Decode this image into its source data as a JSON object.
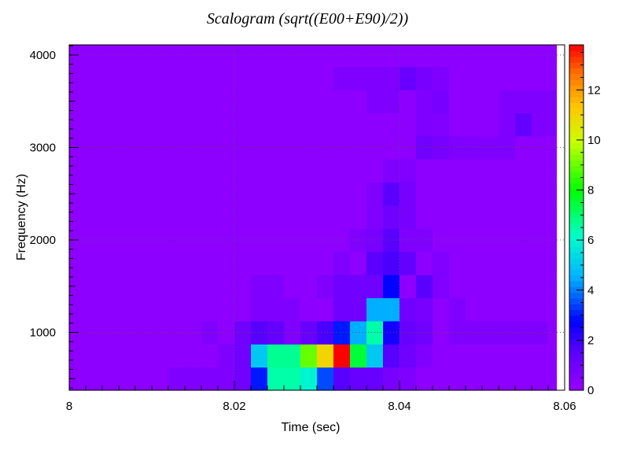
{
  "chart_data": {
    "type": "heatmap",
    "title": "Scalogram (sqrt((E00+E90)/2))",
    "xlabel": "Time (sec)",
    "ylabel": "Frequency (Hz)",
    "xlim": [
      8.0,
      8.06
    ],
    "ylim": [
      375,
      4110
    ],
    "x_ticks": [
      8,
      8.02,
      8.04,
      8.06
    ],
    "x_tick_labels": [
      "8",
      "8.02",
      "8.04",
      "8.06"
    ],
    "y_ticks": [
      1000,
      2000,
      3000,
      4000
    ],
    "y_tick_labels": [
      "1000",
      "2000",
      "3000",
      "4000"
    ],
    "colorbar": {
      "min": 0,
      "max": 13.8,
      "ticks": [
        0,
        2,
        4,
        6,
        8,
        10,
        12
      ],
      "tick_labels": [
        "0",
        "2",
        "4",
        "6",
        "8",
        "10",
        "12"
      ]
    },
    "grid": true,
    "x_bin_edges": [
      8.0,
      8.002,
      8.004,
      8.006,
      8.008,
      8.01,
      8.012,
      8.014,
      8.016,
      8.018,
      8.02,
      8.022,
      8.024,
      8.026,
      8.028,
      8.03,
      8.032,
      8.034,
      8.036,
      8.038,
      8.04,
      8.042,
      8.044,
      8.046,
      8.048,
      8.05,
      8.052,
      8.054,
      8.056,
      8.058,
      8.059
    ],
    "y_bin_edges": [
      375,
      625,
      875,
      1125,
      1375,
      1625,
      1875,
      2125,
      2375,
      2625,
      2875,
      3125,
      3375,
      3625,
      3875,
      4110
    ],
    "values": [
      [
        0.3,
        0.3,
        0.3,
        0.3,
        0.3,
        0.3,
        0.6,
        0.6,
        0.6,
        0.6,
        1.0,
        3.0,
        6.5,
        6.5,
        6.0,
        3.5,
        1.6,
        1.2,
        1.2,
        0.8,
        0.6,
        0.3,
        0.3,
        0.3,
        0.3,
        0.3,
        0.3,
        0.3,
        0.3,
        0.3
      ],
      [
        0.3,
        0.3,
        0.3,
        0.3,
        0.3,
        0.3,
        0.3,
        0.3,
        0.3,
        0.6,
        1.0,
        5.0,
        6.7,
        6.7,
        9.0,
        11.0,
        13.8,
        7.5,
        5.0,
        1.6,
        1.0,
        0.6,
        0.3,
        0.3,
        0.3,
        0.3,
        0.3,
        0.3,
        0.3,
        0.3
      ],
      [
        0.3,
        0.3,
        0.3,
        0.3,
        0.3,
        0.3,
        0.3,
        0.3,
        0.6,
        0.3,
        1.0,
        1.6,
        1.3,
        0.6,
        1.2,
        1.8,
        3.0,
        4.5,
        6.5,
        2.5,
        1.2,
        1.0,
        0.3,
        0.6,
        0.6,
        0.6,
        0.6,
        0.6,
        0.6,
        0.3
      ],
      [
        0.3,
        0.3,
        0.3,
        0.3,
        0.3,
        0.3,
        0.3,
        0.3,
        0.3,
        0.3,
        0.3,
        0.6,
        0.6,
        0.6,
        0.3,
        0.3,
        1.0,
        1.0,
        4.5,
        4.5,
        1.0,
        0.8,
        0.3,
        0.6,
        0.3,
        0.3,
        0.3,
        0.3,
        0.3,
        0.3
      ],
      [
        0.3,
        0.3,
        0.3,
        0.3,
        0.3,
        0.3,
        0.3,
        0.3,
        0.3,
        0.3,
        0.3,
        0.6,
        0.6,
        0.3,
        0.3,
        0.6,
        1.0,
        1.0,
        1.0,
        2.8,
        0.3,
        1.5,
        0.6,
        0.3,
        0.3,
        0.3,
        0.3,
        0.3,
        0.3,
        0.3
      ],
      [
        0.3,
        0.3,
        0.3,
        0.3,
        0.3,
        0.3,
        0.3,
        0.3,
        0.3,
        0.3,
        0.3,
        0.3,
        0.3,
        0.3,
        0.3,
        0.3,
        0.6,
        0.3,
        1.5,
        1.8,
        1.3,
        0.3,
        0.6,
        0.3,
        0.3,
        0.3,
        0.3,
        0.3,
        0.3,
        0.3
      ],
      [
        0.3,
        0.3,
        0.3,
        0.3,
        0.3,
        0.3,
        0.3,
        0.3,
        0.3,
        0.3,
        0.3,
        0.3,
        0.3,
        0.3,
        0.3,
        0.3,
        0.3,
        0.6,
        0.8,
        1.5,
        0.6,
        0.6,
        0.3,
        0.3,
        0.3,
        0.3,
        0.3,
        0.3,
        0.3,
        0.3
      ],
      [
        0.3,
        0.3,
        0.3,
        0.3,
        0.3,
        0.3,
        0.3,
        0.3,
        0.3,
        0.3,
        0.3,
        0.3,
        0.3,
        0.3,
        0.3,
        0.3,
        0.3,
        0.3,
        0.6,
        1.0,
        0.8,
        0.3,
        0.3,
        0.3,
        0.3,
        0.3,
        0.3,
        0.3,
        0.3,
        0.3
      ],
      [
        0.3,
        0.3,
        0.3,
        0.3,
        0.3,
        0.3,
        0.3,
        0.3,
        0.3,
        0.3,
        0.3,
        0.3,
        0.3,
        0.3,
        0.3,
        0.3,
        0.3,
        0.3,
        0.6,
        1.5,
        0.8,
        0.3,
        0.3,
        0.3,
        0.3,
        0.3,
        0.3,
        0.3,
        0.3,
        0.3
      ],
      [
        0.3,
        0.3,
        0.3,
        0.3,
        0.3,
        0.3,
        0.3,
        0.3,
        0.3,
        0.3,
        0.3,
        0.3,
        0.3,
        0.3,
        0.3,
        0.3,
        0.3,
        0.3,
        0.3,
        0.6,
        0.6,
        0.3,
        0.3,
        0.3,
        0.3,
        0.3,
        0.3,
        0.3,
        0.3,
        0.3
      ],
      [
        0.3,
        0.3,
        0.3,
        0.3,
        0.3,
        0.3,
        0.3,
        0.3,
        0.3,
        0.3,
        0.3,
        0.3,
        0.3,
        0.3,
        0.3,
        0.3,
        0.3,
        0.3,
        0.3,
        0.3,
        0.3,
        1.0,
        0.8,
        0.6,
        0.6,
        0.6,
        0.6,
        0.3,
        0.3,
        0.3
      ],
      [
        0.3,
        0.3,
        0.3,
        0.3,
        0.3,
        0.3,
        0.3,
        0.3,
        0.3,
        0.3,
        0.3,
        0.3,
        0.3,
        0.3,
        0.3,
        0.3,
        0.3,
        0.3,
        0.3,
        0.3,
        0.3,
        0.6,
        0.6,
        0.3,
        0.3,
        0.3,
        0.6,
        1.3,
        0.6,
        0.6
      ],
      [
        0.3,
        0.3,
        0.3,
        0.3,
        0.3,
        0.3,
        0.3,
        0.3,
        0.3,
        0.3,
        0.3,
        0.3,
        0.3,
        0.3,
        0.3,
        0.3,
        0.3,
        0.3,
        0.6,
        0.6,
        0.3,
        0.6,
        0.8,
        0.3,
        0.3,
        0.3,
        0.6,
        0.6,
        0.6,
        0.6
      ],
      [
        0.3,
        0.3,
        0.3,
        0.3,
        0.3,
        0.3,
        0.3,
        0.3,
        0.3,
        0.3,
        0.3,
        0.3,
        0.3,
        0.3,
        0.3,
        0.3,
        0.6,
        0.6,
        0.6,
        0.6,
        1.2,
        0.8,
        0.6,
        0.3,
        0.3,
        0.3,
        0.3,
        0.3,
        0.3,
        0.3
      ],
      [
        0.3,
        0.3,
        0.3,
        0.3,
        0.3,
        0.3,
        0.3,
        0.3,
        0.3,
        0.3,
        0.3,
        0.3,
        0.3,
        0.3,
        0.3,
        0.3,
        0.3,
        0.3,
        0.3,
        0.3,
        0.3,
        0.3,
        0.3,
        0.3,
        0.3,
        0.3,
        0.3,
        0.3,
        0.3,
        0.3
      ]
    ]
  }
}
